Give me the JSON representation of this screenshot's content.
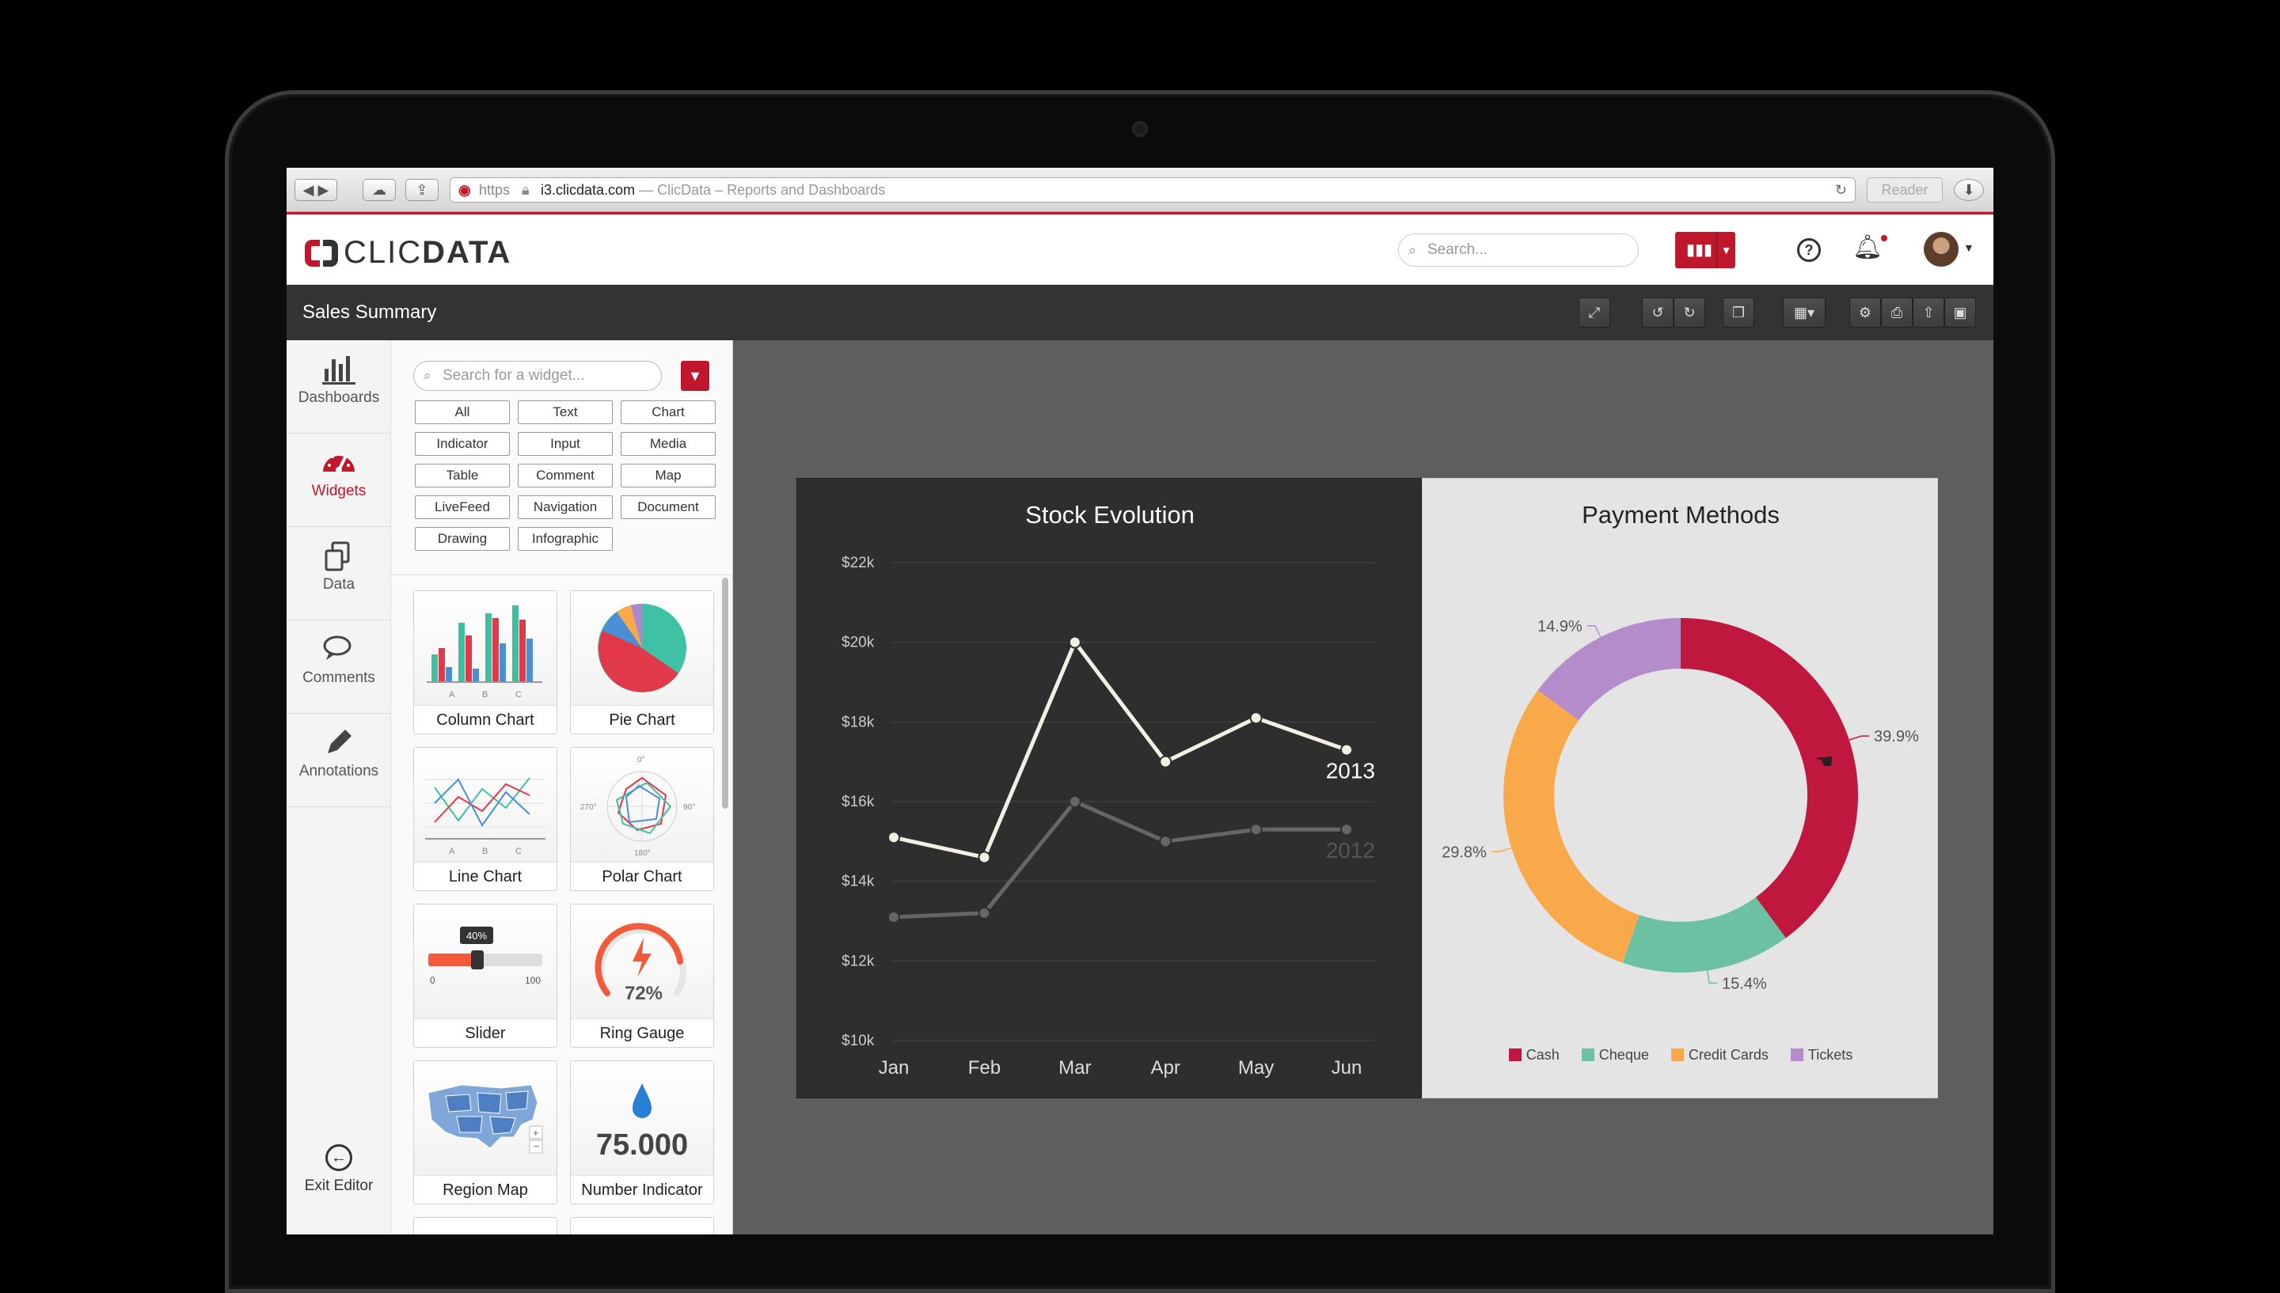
{
  "browser": {
    "url_scheme": "https",
    "url_domain": "i3.clicdata.com",
    "url_title": "— ClicData – Reports and Dashboards",
    "reader_label": "Reader"
  },
  "header": {
    "logo_prefix": "CLIC",
    "logo_suffix": "DATA",
    "search_placeholder": "Search...",
    "help_symbol": "?"
  },
  "toolbar": {
    "title": "Sales Summary"
  },
  "rail": {
    "items": [
      {
        "label": "Dashboards",
        "icon": "bar-chart-icon"
      },
      {
        "label": "Widgets",
        "icon": "gauge-icon"
      },
      {
        "label": "Data",
        "icon": "copy-icon"
      },
      {
        "label": "Comments",
        "icon": "comments-icon"
      },
      {
        "label": "Annotations",
        "icon": "pencil-icon"
      }
    ],
    "exit_label": "Exit Editor"
  },
  "panel": {
    "search_placeholder": "Search for a widget...",
    "tags": [
      "All",
      "Text",
      "Chart",
      "Indicator",
      "Input",
      "Media",
      "Table",
      "Comment",
      "Map",
      "LiveFeed",
      "Navigation",
      "Document",
      "Drawing",
      "Infographic"
    ],
    "widgets": [
      {
        "label": "Column Chart"
      },
      {
        "label": "Pie Chart"
      },
      {
        "label": "Line Chart"
      },
      {
        "label": "Polar Chart"
      },
      {
        "label": "Slider",
        "value": "40%",
        "min": "0",
        "max": "100"
      },
      {
        "label": "Ring Gauge",
        "value": "72%"
      },
      {
        "label": "Region Map"
      },
      {
        "label": "Number Indicator",
        "value": "75.000"
      }
    ],
    "axis_ticks": [
      "A",
      "B",
      "C"
    ],
    "polar_ticks": [
      "0°",
      "90°",
      "180°",
      "270°"
    ]
  },
  "accent_color": "#c0172c",
  "chart_data": [
    {
      "type": "line",
      "title": "Stock Evolution",
      "categories": [
        "Jan",
        "Feb",
        "Mar",
        "Apr",
        "May",
        "Jun"
      ],
      "y_tick_labels": [
        "$10k",
        "$12k",
        "$14k",
        "$16k",
        "$18k",
        "$20k",
        "$22k"
      ],
      "ylim": [
        10000,
        22000
      ],
      "grid": true,
      "series": [
        {
          "name": "2013",
          "values": [
            15100,
            14600,
            20000,
            17000,
            18100,
            17300
          ],
          "color": "#f2f0e4"
        },
        {
          "name": "2012",
          "values": [
            13100,
            13200,
            16000,
            15000,
            15300,
            15300
          ],
          "color": "#666666"
        }
      ]
    },
    {
      "type": "pie",
      "title": "Payment Methods",
      "categories": [
        "Cash",
        "Cheque",
        "Credit Cards",
        "Tickets"
      ],
      "values": [
        39.9,
        15.4,
        29.8,
        14.9
      ],
      "value_labels": [
        "39.9%",
        "15.4%",
        "29.8%",
        "14.9%"
      ],
      "colors": [
        "#c0173e",
        "#6cc0a4",
        "#f9a94a",
        "#b48ccc"
      ],
      "legend": "bottom"
    }
  ]
}
